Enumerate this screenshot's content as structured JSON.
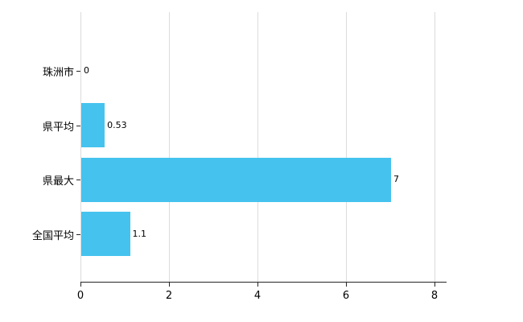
{
  "chart_data": {
    "type": "bar",
    "orientation": "horizontal",
    "title": "",
    "xlabel": "",
    "ylabel": "",
    "categories": [
      "珠洲市",
      "県平均",
      "県最大",
      "全国平均"
    ],
    "values": [
      0,
      0.53,
      7,
      1.1
    ],
    "value_labels": [
      "0",
      "0.53",
      "7",
      "1.1"
    ],
    "xlim": [
      0,
      8
    ],
    "x_tick_values": [
      0,
      2,
      4,
      6,
      8
    ],
    "x_tick_labels": [
      "0",
      "2",
      "4",
      "6",
      "8"
    ],
    "grid": true,
    "legend_position": "none"
  },
  "colors": {
    "bar": "#45C3EE",
    "gridline": "#dcdcdc",
    "axis": "#262626",
    "background": "#ffffff"
  }
}
